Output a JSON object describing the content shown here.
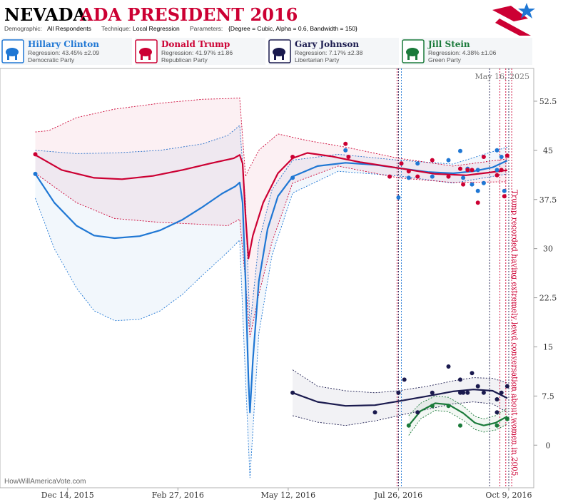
{
  "header": {
    "title_state": "NEVADA",
    "title_rest": "ADA PRESIDENT 2016",
    "meta": [
      {
        "label": "Demographic:",
        "value": "All Respondents"
      },
      {
        "label": "Technique:",
        "value": "Local Regression"
      },
      {
        "label": "Parameters:",
        "value": "{Degree = Cubic, Alpha = 0.6, Bandwidth = 150}"
      }
    ]
  },
  "candidates": [
    {
      "name": "Hillary Clinton",
      "regression": "Regression: 43.45% ±2.09",
      "party": "Democratic Party",
      "color": "#1f77d4",
      "icon": "donkey-icon"
    },
    {
      "name": "Donald Trump",
      "regression": "Regression: 41.97% ±1.86",
      "party": "Republican Party",
      "color": "#cc0033",
      "icon": "elephant-icon"
    },
    {
      "name": "Gary Johnson",
      "regression": "Regression: 7.17% ±2.38",
      "party": "Libertarian Party",
      "color": "#1a1a4e",
      "icon": "statue-of-liberty-icon"
    },
    {
      "name": "Jill Stein",
      "regression": "Regression: 4.38% ±1.06",
      "party": "Green Party",
      "color": "#1a7a3a",
      "icon": "flower-icon"
    }
  ],
  "date_label": "May 16, 2025",
  "annotation": "Trump recorded having extremely lewd conversation about women in 2005",
  "watermark": "HowWillAmericaVote.com",
  "chart_data": {
    "type": "line",
    "y_ticks": [
      "52.5",
      "45",
      "37.5",
      "30",
      "22.5",
      "15",
      "7.5",
      "0"
    ],
    "x_ticks": [
      "Dec 14, 2015",
      "Feb 27, 2016",
      "May 12, 2016",
      "Jul 26, 2016",
      "Oct 9, 2016"
    ],
    "ylim": [
      -6.5,
      57.5
    ],
    "xlim_dates": [
      "2015-10-29",
      "2016-10-26"
    ],
    "grid": false,
    "event_date": "2016-10-07",
    "series": [
      {
        "name": "Hillary Clinton",
        "color": "#1f77d4",
        "line": [
          [
            "2015-11-22",
            41.4
          ],
          [
            "2015-12-05",
            37.0
          ],
          [
            "2015-12-20",
            33.5
          ],
          [
            "2016-01-01",
            32.0
          ],
          [
            "2016-01-15",
            31.6
          ],
          [
            "2016-02-01",
            31.9
          ],
          [
            "2016-02-15",
            32.8
          ],
          [
            "2016-03-01",
            34.4
          ],
          [
            "2016-03-15",
            36.4
          ],
          [
            "2016-03-28",
            38.4
          ],
          [
            "2016-04-06",
            39.5
          ],
          [
            "2016-04-09",
            40.1
          ],
          [
            "2016-04-11",
            37.0
          ],
          [
            "2016-04-13",
            25.0
          ],
          [
            "2016-04-15",
            10.0
          ],
          [
            "2016-04-16",
            5.0
          ],
          [
            "2016-04-18",
            13.0
          ],
          [
            "2016-04-22",
            25.0
          ],
          [
            "2016-04-28",
            33.0
          ],
          [
            "2016-05-05",
            38.0
          ],
          [
            "2016-05-15",
            41.0
          ],
          [
            "2016-06-01",
            42.6
          ],
          [
            "2016-06-20",
            43.1
          ],
          [
            "2016-07-10",
            42.8
          ],
          [
            "2016-07-26",
            42.3
          ],
          [
            "2016-08-15",
            41.7
          ],
          [
            "2016-09-01",
            41.5
          ],
          [
            "2016-09-15",
            41.8
          ],
          [
            "2016-09-28",
            42.4
          ],
          [
            "2016-10-08",
            43.45
          ]
        ],
        "upper": [
          [
            "2015-11-22",
            45.0
          ],
          [
            "2015-12-20",
            44.5
          ],
          [
            "2016-01-15",
            44.6
          ],
          [
            "2016-02-15",
            45.0
          ],
          [
            "2016-03-15",
            46.0
          ],
          [
            "2016-04-01",
            47.3
          ],
          [
            "2016-04-09",
            48.8
          ],
          [
            "2016-04-13",
            37.0
          ],
          [
            "2016-04-16",
            18.0
          ],
          [
            "2016-04-22",
            31.0
          ],
          [
            "2016-05-01",
            39.0
          ],
          [
            "2016-05-15",
            43.5
          ],
          [
            "2016-06-15",
            44.4
          ],
          [
            "2016-07-26",
            43.5
          ],
          [
            "2016-09-01",
            42.9
          ],
          [
            "2016-10-08",
            45.5
          ]
        ],
        "lower": [
          [
            "2015-11-22",
            37.7
          ],
          [
            "2015-12-05",
            30.0
          ],
          [
            "2015-12-20",
            24.0
          ],
          [
            "2016-01-01",
            20.5
          ],
          [
            "2016-01-15",
            19.0
          ],
          [
            "2016-02-01",
            19.2
          ],
          [
            "2016-02-15",
            20.5
          ],
          [
            "2016-03-01",
            23.0
          ],
          [
            "2016-03-15",
            26.0
          ],
          [
            "2016-04-01",
            29.5
          ],
          [
            "2016-04-09",
            31.3
          ],
          [
            "2016-04-13",
            10.0
          ],
          [
            "2016-04-16",
            -5.0
          ],
          [
            "2016-04-22",
            17.0
          ],
          [
            "2016-05-01",
            29.0
          ],
          [
            "2016-05-15",
            38.5
          ],
          [
            "2016-06-15",
            41.8
          ],
          [
            "2016-07-26",
            41.1
          ],
          [
            "2016-09-01",
            40.0
          ],
          [
            "2016-10-08",
            41.4
          ]
        ],
        "points": [
          [
            "2015-11-22",
            41.4
          ],
          [
            "2016-05-15",
            40.8
          ],
          [
            "2016-06-20",
            45.0
          ],
          [
            "2016-07-26",
            37.8
          ],
          [
            "2016-07-28",
            43.0
          ],
          [
            "2016-08-02",
            40.8
          ],
          [
            "2016-08-08",
            43.0
          ],
          [
            "2016-08-18",
            41.0
          ],
          [
            "2016-08-29",
            43.5
          ],
          [
            "2016-09-06",
            44.9
          ],
          [
            "2016-09-08",
            40.8
          ],
          [
            "2016-09-11",
            42.2
          ],
          [
            "2016-09-14",
            39.8
          ],
          [
            "2016-09-18",
            38.8
          ],
          [
            "2016-09-18",
            42.0
          ],
          [
            "2016-09-22",
            40.0
          ],
          [
            "2016-10-01",
            45.0
          ],
          [
            "2016-10-01",
            42.0
          ],
          [
            "2016-10-04",
            44.0
          ],
          [
            "2016-10-06",
            38.8
          ]
        ]
      },
      {
        "name": "Donald Trump",
        "color": "#cc0033",
        "line": [
          [
            "2015-11-22",
            44.3
          ],
          [
            "2015-12-10",
            42.0
          ],
          [
            "2016-01-01",
            40.8
          ],
          [
            "2016-01-20",
            40.6
          ],
          [
            "2016-02-10",
            41.1
          ],
          [
            "2016-03-01",
            42.0
          ],
          [
            "2016-03-20",
            43.0
          ],
          [
            "2016-04-05",
            43.8
          ],
          [
            "2016-04-09",
            44.3
          ],
          [
            "2016-04-11",
            43.0
          ],
          [
            "2016-04-13",
            35.0
          ],
          [
            "2016-04-15",
            28.5
          ],
          [
            "2016-04-18",
            32.0
          ],
          [
            "2016-04-25",
            37.0
          ],
          [
            "2016-05-05",
            41.5
          ],
          [
            "2016-05-15",
            43.8
          ],
          [
            "2016-05-25",
            44.6
          ],
          [
            "2016-06-10",
            44.1
          ],
          [
            "2016-06-30",
            43.2
          ],
          [
            "2016-07-26",
            42.3
          ],
          [
            "2016-08-20",
            41.4
          ],
          [
            "2016-09-10",
            41.2
          ],
          [
            "2016-09-25",
            41.6
          ],
          [
            "2016-10-08",
            41.97
          ]
        ],
        "upper": [
          [
            "2015-11-22",
            47.8
          ],
          [
            "2015-12-01",
            48.0
          ],
          [
            "2015-12-20",
            50.0
          ],
          [
            "2016-01-15",
            51.3
          ],
          [
            "2016-02-15",
            52.2
          ],
          [
            "2016-03-15",
            52.8
          ],
          [
            "2016-04-01",
            52.9
          ],
          [
            "2016-04-09",
            53.0
          ],
          [
            "2016-04-13",
            41.0
          ],
          [
            "2016-04-15",
            42.0
          ],
          [
            "2016-04-22",
            45.0
          ],
          [
            "2016-05-05",
            47.5
          ],
          [
            "2016-05-25",
            46.5
          ],
          [
            "2016-06-20",
            45.5
          ],
          [
            "2016-07-26",
            43.8
          ],
          [
            "2016-09-01",
            42.6
          ],
          [
            "2016-10-08",
            43.7
          ]
        ],
        "lower": [
          [
            "2015-11-22",
            41.5
          ],
          [
            "2015-12-20",
            37.0
          ],
          [
            "2016-01-15",
            34.6
          ],
          [
            "2016-02-15",
            34.0
          ],
          [
            "2016-03-15",
            33.7
          ],
          [
            "2016-04-01",
            33.5
          ],
          [
            "2016-04-09",
            34.5
          ],
          [
            "2016-04-13",
            25.0
          ],
          [
            "2016-04-16",
            16.5
          ],
          [
            "2016-04-22",
            23.0
          ],
          [
            "2016-05-01",
            31.0
          ],
          [
            "2016-05-15",
            40.0
          ],
          [
            "2016-06-15",
            42.6
          ],
          [
            "2016-07-26",
            40.8
          ],
          [
            "2016-09-01",
            40.1
          ],
          [
            "2016-10-08",
            40.2
          ]
        ],
        "points": [
          [
            "2015-11-22",
            44.4
          ],
          [
            "2016-05-15",
            44.0
          ],
          [
            "2016-06-20",
            46.0
          ],
          [
            "2016-06-22",
            44.0
          ],
          [
            "2016-07-20",
            41.0
          ],
          [
            "2016-07-28",
            43.0
          ],
          [
            "2016-08-02",
            41.8
          ],
          [
            "2016-08-08",
            41.0
          ],
          [
            "2016-08-18",
            43.5
          ],
          [
            "2016-08-29",
            41.0
          ],
          [
            "2016-09-06",
            42.2
          ],
          [
            "2016-09-08",
            39.8
          ],
          [
            "2016-09-11",
            42.0
          ],
          [
            "2016-09-14",
            42.0
          ],
          [
            "2016-09-18",
            37.0
          ],
          [
            "2016-09-22",
            44.0
          ],
          [
            "2016-10-01",
            41.2
          ],
          [
            "2016-10-04",
            42.0
          ],
          [
            "2016-10-06",
            38.0
          ],
          [
            "2016-10-08",
            44.2
          ]
        ]
      },
      {
        "name": "Gary Johnson",
        "color": "#1a1a4e",
        "line": [
          [
            "2016-05-15",
            8.0
          ],
          [
            "2016-06-01",
            6.6
          ],
          [
            "2016-06-20",
            6.0
          ],
          [
            "2016-07-10",
            6.1
          ],
          [
            "2016-07-26",
            6.7
          ],
          [
            "2016-08-15",
            7.5
          ],
          [
            "2016-09-01",
            8.2
          ],
          [
            "2016-09-15",
            8.5
          ],
          [
            "2016-09-28",
            8.3
          ],
          [
            "2016-10-08",
            7.17
          ]
        ],
        "upper": [
          [
            "2016-05-15",
            11.5
          ],
          [
            "2016-06-01",
            9.0
          ],
          [
            "2016-06-20",
            8.3
          ],
          [
            "2016-07-10",
            8.0
          ],
          [
            "2016-07-26",
            8.3
          ],
          [
            "2016-08-15",
            9.0
          ],
          [
            "2016-09-01",
            9.8
          ],
          [
            "2016-09-15",
            10.3
          ],
          [
            "2016-09-28",
            10.2
          ],
          [
            "2016-10-08",
            9.5
          ]
        ],
        "lower": [
          [
            "2016-05-15",
            4.5
          ],
          [
            "2016-06-01",
            3.5
          ],
          [
            "2016-06-20",
            3.0
          ],
          [
            "2016-07-10",
            3.7
          ],
          [
            "2016-07-26",
            4.5
          ],
          [
            "2016-08-15",
            5.5
          ],
          [
            "2016-09-01",
            6.3
          ],
          [
            "2016-09-15",
            6.6
          ],
          [
            "2016-09-28",
            6.3
          ],
          [
            "2016-10-08",
            5.0
          ]
        ],
        "points": [
          [
            "2016-05-15",
            8.0
          ],
          [
            "2016-07-10",
            5.0
          ],
          [
            "2016-07-26",
            8.0
          ],
          [
            "2016-07-30",
            10.0
          ],
          [
            "2016-08-08",
            5.0
          ],
          [
            "2016-08-18",
            8.0
          ],
          [
            "2016-08-29",
            12.0
          ],
          [
            "2016-09-06",
            10.0
          ],
          [
            "2016-09-06",
            8.0
          ],
          [
            "2016-09-08",
            8.0
          ],
          [
            "2016-09-11",
            8.0
          ],
          [
            "2016-09-14",
            11.0
          ],
          [
            "2016-09-18",
            9.0
          ],
          [
            "2016-09-22",
            8.0
          ],
          [
            "2016-10-01",
            7.0
          ],
          [
            "2016-10-01",
            5.0
          ],
          [
            "2016-10-04",
            8.0
          ],
          [
            "2016-10-08",
            9.0
          ]
        ]
      },
      {
        "name": "Jill Stein",
        "color": "#1a7a3a",
        "line": [
          [
            "2016-08-02",
            3.0
          ],
          [
            "2016-08-10",
            5.2
          ],
          [
            "2016-08-20",
            6.4
          ],
          [
            "2016-08-29",
            6.2
          ],
          [
            "2016-09-08",
            4.9
          ],
          [
            "2016-09-16",
            3.4
          ],
          [
            "2016-09-22",
            3.0
          ],
          [
            "2016-09-30",
            3.4
          ],
          [
            "2016-10-08",
            4.38
          ]
        ],
        "upper": [
          [
            "2016-08-02",
            4.5
          ],
          [
            "2016-08-10",
            6.4
          ],
          [
            "2016-08-20",
            7.5
          ],
          [
            "2016-08-29",
            7.3
          ],
          [
            "2016-09-08",
            6.0
          ],
          [
            "2016-09-16",
            4.4
          ],
          [
            "2016-09-22",
            4.0
          ],
          [
            "2016-09-30",
            4.5
          ],
          [
            "2016-10-08",
            5.6
          ]
        ],
        "lower": [
          [
            "2016-08-02",
            1.5
          ],
          [
            "2016-08-10",
            4.0
          ],
          [
            "2016-08-20",
            5.3
          ],
          [
            "2016-08-29",
            5.1
          ],
          [
            "2016-09-08",
            3.8
          ],
          [
            "2016-09-16",
            2.4
          ],
          [
            "2016-09-22",
            2.0
          ],
          [
            "2016-09-30",
            2.3
          ],
          [
            "2016-10-08",
            3.2
          ]
        ],
        "points": [
          [
            "2016-08-02",
            3.0
          ],
          [
            "2016-08-18",
            6.0
          ],
          [
            "2016-08-29",
            6.0
          ],
          [
            "2016-09-06",
            3.0
          ],
          [
            "2016-10-01",
            3.0
          ],
          [
            "2016-10-08",
            4.0
          ]
        ]
      }
    ],
    "vlines": [
      {
        "date": "2016-07-25",
        "color": "#cc0033"
      },
      {
        "date": "2016-07-26",
        "color": "#1a1a4e"
      },
      {
        "date": "2016-07-28",
        "color": "#1f77d4"
      },
      {
        "date": "2016-09-26",
        "color": "#1a1a4e"
      },
      {
        "date": "2016-10-03",
        "color": "#cc0033"
      },
      {
        "date": "2016-10-07",
        "color": "#cc0033"
      },
      {
        "date": "2016-10-09",
        "color": "#1a1a4e"
      },
      {
        "date": "2016-10-11",
        "color": "#cc0033"
      }
    ]
  }
}
